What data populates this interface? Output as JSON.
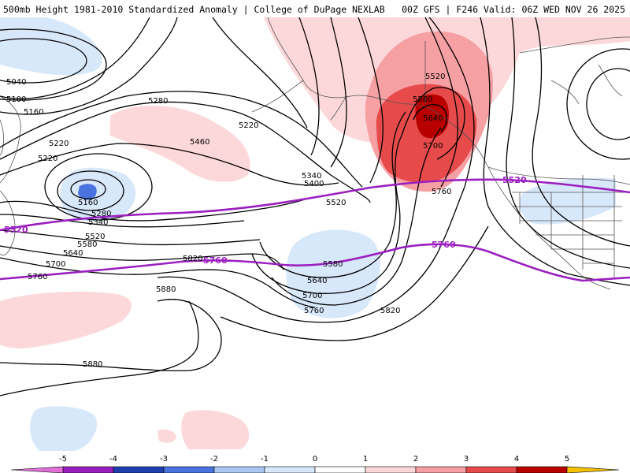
{
  "header": {
    "left": "500mb Height 1981-2010 Standardized Anomaly | College of DuPage NEXLAB",
    "right": "00Z GFS | F246 Valid: 06Z WED NOV 26 2025"
  },
  "colors": {
    "reference_contour": "#9b1fc0",
    "contour": "#000000",
    "land": "#555555"
  },
  "contour_labels": [
    {
      "id": "c5040",
      "text": "5040"
    },
    {
      "id": "c5100",
      "text": "5100"
    },
    {
      "id": "c5160a",
      "text": "5160"
    },
    {
      "id": "c5220a",
      "text": "5220"
    },
    {
      "id": "c5220b",
      "text": "5220"
    },
    {
      "id": "c5160b",
      "text": "5160"
    },
    {
      "id": "c5280a",
      "text": "5280"
    },
    {
      "id": "c5340a",
      "text": "5340"
    },
    {
      "id": "c5520a",
      "text": "5520"
    },
    {
      "id": "c5580a",
      "text": "5580"
    },
    {
      "id": "c5640a",
      "text": "5640"
    },
    {
      "id": "c5700a",
      "text": "5700"
    },
    {
      "id": "c5760a",
      "text": "5760"
    },
    {
      "id": "c5820a",
      "text": "5820"
    },
    {
      "id": "c5880a",
      "text": "5880"
    },
    {
      "id": "c5880b",
      "text": "5880"
    },
    {
      "id": "c5280b",
      "text": "5280"
    },
    {
      "id": "c5460",
      "text": "5460"
    },
    {
      "id": "c5220c",
      "text": "5220"
    },
    {
      "id": "c5340b",
      "text": "5340"
    },
    {
      "id": "c5400",
      "text": "5400"
    },
    {
      "id": "c5520b",
      "text": "5520"
    },
    {
      "id": "c5580b",
      "text": "5580"
    },
    {
      "id": "c5640b",
      "text": "5640"
    },
    {
      "id": "c5700b",
      "text": "5700"
    },
    {
      "id": "c5760b",
      "text": "5760"
    },
    {
      "id": "c5820b",
      "text": "5820"
    },
    {
      "id": "c5520c",
      "text": "5520"
    },
    {
      "id": "c5580c",
      "text": "5580"
    },
    {
      "id": "c5640c",
      "text": "5640"
    },
    {
      "id": "c5700c",
      "text": "5700"
    },
    {
      "id": "c5760c",
      "text": "5760"
    }
  ],
  "reference_labels": [
    {
      "id": "r5520a",
      "text": "5520"
    },
    {
      "id": "r5520b",
      "text": "5520"
    },
    {
      "id": "r5760a",
      "text": "5760"
    },
    {
      "id": "r5760b",
      "text": "5760"
    }
  ],
  "colorbar": {
    "ticks": [
      "-5",
      "-4",
      "-3",
      "-2",
      "-1",
      "0",
      "1",
      "2",
      "3",
      "4",
      "5"
    ],
    "bins": [
      {
        "from": "-5",
        "to": "-4",
        "color": "#9b1fc0"
      },
      {
        "from": "-4",
        "to": "-3",
        "color": "#1f3fb0"
      },
      {
        "from": "-3",
        "to": "-2",
        "color": "#4a73e0"
      },
      {
        "from": "-2",
        "to": "-1",
        "color": "#a8c8f0"
      },
      {
        "from": "-1",
        "to": "0",
        "color": "#d8e8fb"
      },
      {
        "from": "0",
        "to": "1",
        "color": "#ffffff"
      },
      {
        "from": "1",
        "to": "2",
        "color": "#fcd8da"
      },
      {
        "from": "2",
        "to": "3",
        "color": "#f6a0a4"
      },
      {
        "from": "3",
        "to": "4",
        "color": "#e64a4a"
      },
      {
        "from": "4",
        "to": "5",
        "color": "#b80000"
      },
      {
        "from": "5",
        "to": "6",
        "color": "#f08a00"
      }
    ],
    "low_end_color": "#e070d8",
    "high_end_color": "#f5c000"
  }
}
